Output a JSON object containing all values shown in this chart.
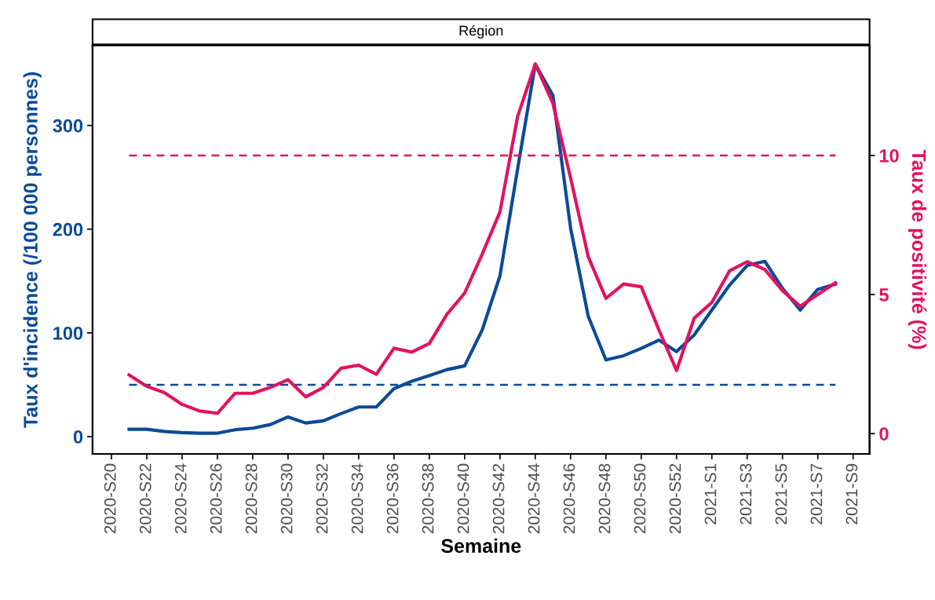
{
  "chart_data": {
    "type": "line",
    "title": "Région",
    "xlabel": "Semaine",
    "ylabel": "Taux d'incidence (/100 000 personnes)",
    "y2label": "Taux de positivité (%)",
    "categories": [
      "2020-S20",
      null,
      "2020-S22",
      null,
      "2020-S24",
      null,
      "2020-S26",
      null,
      "2020-S28",
      null,
      "2020-S30",
      null,
      "2020-S32",
      null,
      "2020-S34",
      null,
      "2020-S36",
      null,
      "2020-S38",
      null,
      "2020-S40",
      null,
      "2020-S42",
      null,
      "2020-S44",
      null,
      "2020-S46",
      null,
      "2020-S48",
      null,
      "2020-S50",
      null,
      "2020-S52",
      null,
      "2021-S1",
      null,
      "2021-S3",
      null,
      "2021-S5",
      null,
      "2021-S7",
      null,
      "2021-S9"
    ],
    "series": [
      {
        "color": "#0b4a99",
        "values": [
          null,
          7,
          7,
          5,
          3.8,
          3.3,
          3.3,
          6.6,
          8.1,
          11.6,
          18.9,
          13.1,
          15.2,
          22.2,
          28.5,
          28.5,
          46.2,
          53.3,
          58.8,
          64.6,
          68.2,
          103,
          155,
          258,
          359,
          329,
          201,
          116,
          74,
          78,
          85,
          93,
          82,
          98,
          122,
          146,
          165,
          169,
          143,
          122,
          142,
          147,
          null
        ]
      },
      {
        "color": "#e3125f",
        "axis": "y2",
        "values": [
          null,
          2.11,
          1.7,
          1.47,
          1.05,
          0.81,
          0.73,
          1.45,
          1.45,
          1.66,
          1.94,
          1.32,
          1.66,
          2.35,
          2.46,
          2.13,
          3.07,
          2.93,
          3.24,
          4.29,
          5.05,
          6.46,
          7.97,
          11.4,
          13.29,
          11.87,
          9.19,
          6.36,
          4.86,
          5.38,
          5.28,
          3.73,
          2.27,
          4.15,
          4.72,
          5.85,
          6.18,
          5.9,
          5.14,
          4.58,
          5.0,
          5.42,
          null
        ]
      }
    ],
    "ylim": [
      -16.7,
      377
    ],
    "yticks": [
      0,
      100,
      200,
      300
    ],
    "y2lim": [
      -0.73,
      13.95
    ],
    "y2ticks": [
      0,
      5,
      10
    ],
    "ref_lines": [
      {
        "axis": "y",
        "value": 50,
        "color": "#0b4a99",
        "line_style": "dashed"
      },
      {
        "axis": "y2",
        "value": 10,
        "color": "#e3125f",
        "line_style": "dashed"
      }
    ],
    "grid": false,
    "legend": false
  }
}
